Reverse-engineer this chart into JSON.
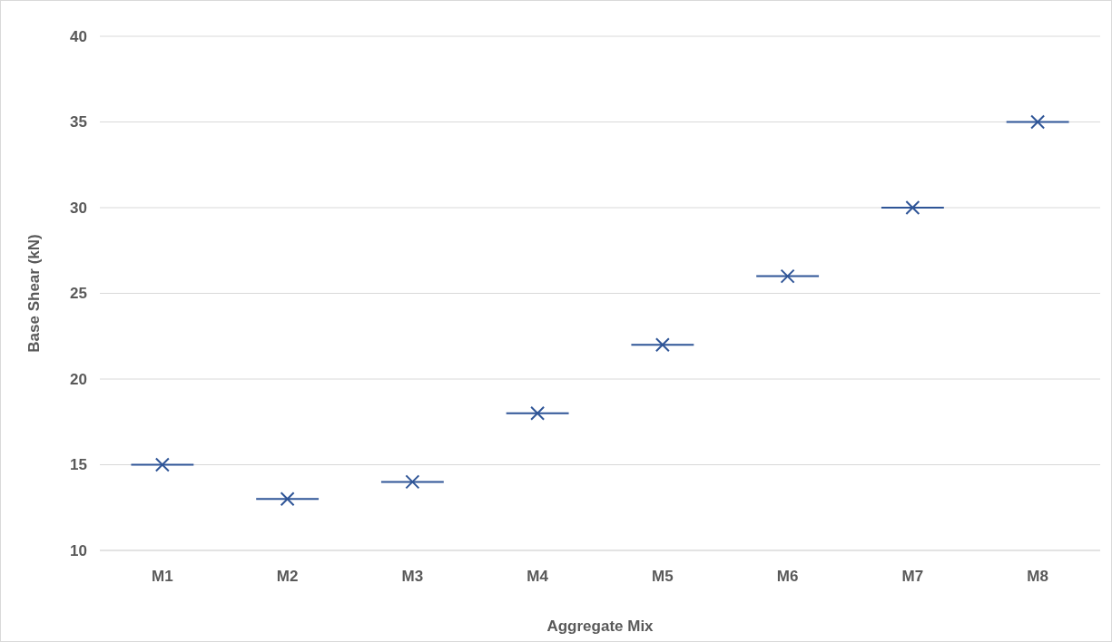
{
  "chart_data": {
    "type": "box",
    "xlabel": "Aggregate Mix",
    "ylabel": "Base Shear (kN)",
    "categories": [
      "M1",
      "M2",
      "M3",
      "M4",
      "M5",
      "M6",
      "M7",
      "M8"
    ],
    "color": "#2f5597",
    "boxes": [
      {
        "low": 15,
        "q1": 15,
        "median": 15,
        "q3": 15,
        "high": 15,
        "mean": 15
      },
      {
        "low": 13,
        "q1": 13,
        "median": 13,
        "q3": 13,
        "high": 13,
        "mean": 13
      },
      {
        "low": 14,
        "q1": 14,
        "median": 14,
        "q3": 14,
        "high": 14,
        "mean": 14
      },
      {
        "low": 18,
        "q1": 18,
        "median": 18,
        "q3": 18,
        "high": 18,
        "mean": 18
      },
      {
        "low": 22,
        "q1": 22,
        "median": 22,
        "q3": 22,
        "high": 22,
        "mean": 22
      },
      {
        "low": 26,
        "q1": 26,
        "median": 26,
        "q3": 26,
        "high": 26,
        "mean": 26
      },
      {
        "low": 30,
        "q1": 30,
        "median": 30,
        "q3": 30,
        "high": 30,
        "mean": 30
      },
      {
        "low": 35,
        "q1": 35,
        "median": 35,
        "q3": 35,
        "high": 35,
        "mean": 35
      }
    ],
    "ylim": [
      10,
      40
    ],
    "yticks": [
      10,
      15,
      20,
      25,
      30,
      35,
      40
    ],
    "grid": "y",
    "marker": "cross"
  }
}
